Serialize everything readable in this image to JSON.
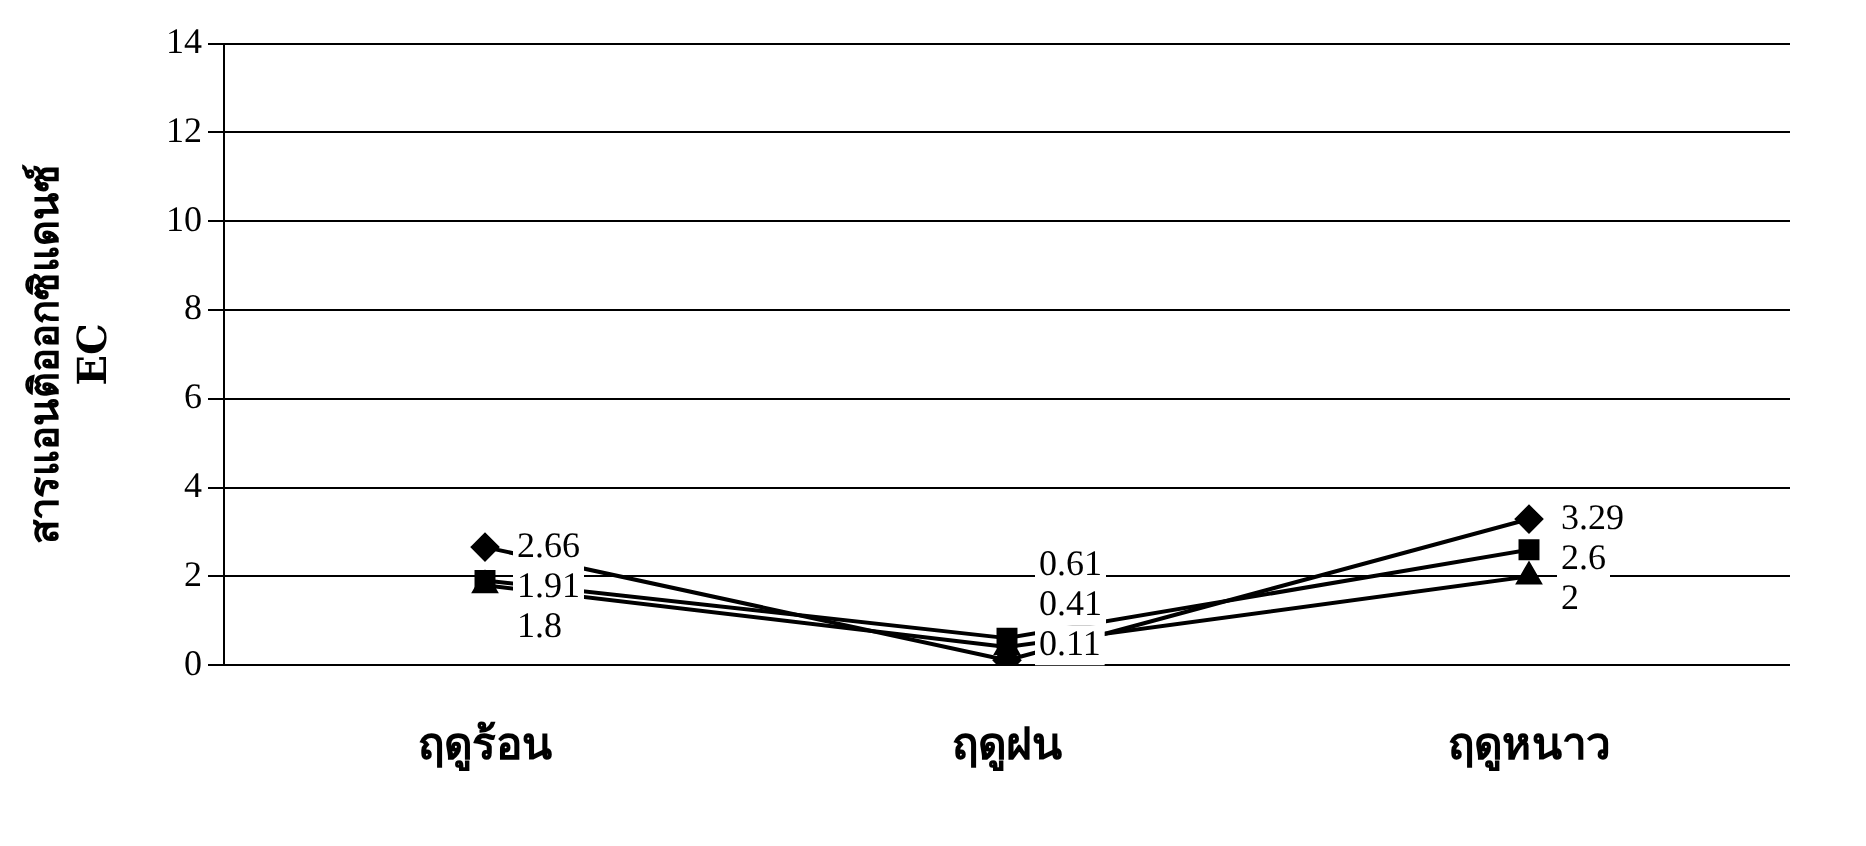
{
  "chart_data": {
    "type": "line",
    "ylabel": "สารแอนติออกซิแดนซ์\nEC",
    "categories": [
      "ฤดูร้อน",
      "ฤดูฝน",
      "ฤดูหนาว"
    ],
    "series": [
      {
        "color": "#000000",
        "marker": "diamond",
        "values": [
          2.66,
          0.11,
          3.29
        ]
      },
      {
        "color": "#000000",
        "marker": "square",
        "values": [
          1.91,
          0.61,
          2.6
        ]
      },
      {
        "color": "#000000",
        "marker": "triangle",
        "values": [
          1.8,
          0.41,
          2
        ]
      }
    ],
    "ylim": [
      0,
      14
    ],
    "yticks": [
      0,
      2,
      4,
      6,
      8,
      10,
      12,
      14
    ],
    "grid": "y",
    "legend": false,
    "data_labels": true,
    "line_style": "solid"
  }
}
